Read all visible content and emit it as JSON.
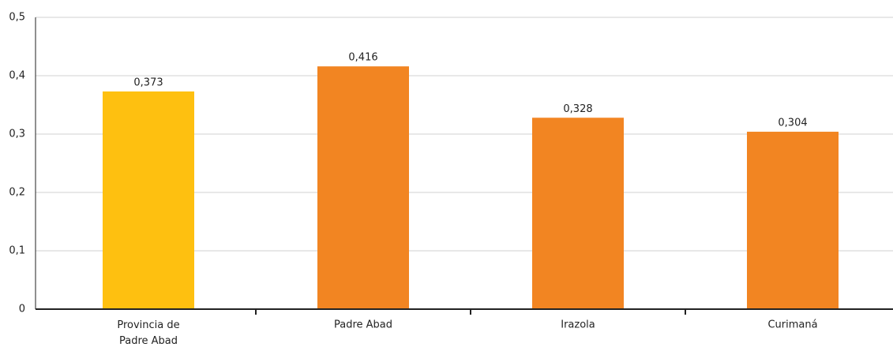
{
  "chart_data": {
    "type": "bar",
    "categories": [
      "Provincia de Padre Abad",
      "Padre Abad",
      "Irazola",
      "Curimaná"
    ],
    "values": [
      0.373,
      0.416,
      0.328,
      0.304
    ],
    "value_labels": [
      "0,373",
      "0,416",
      "0,328",
      "0,304"
    ],
    "colors": [
      "#fec010",
      "#f28522",
      "#f28522",
      "#f28522"
    ],
    "ylim": [
      0,
      0.5
    ],
    "yticks": [
      0,
      {
        "value": 0.1,
        "label": "0,1"
      },
      {
        "value": 0.2,
        "label": "0,2"
      },
      {
        "value": 0.3,
        "label": "0,3"
      },
      {
        "value": 0.4,
        "label": "0,4"
      },
      {
        "value": 0.5,
        "label": "0,5"
      }
    ],
    "grid": true
  }
}
